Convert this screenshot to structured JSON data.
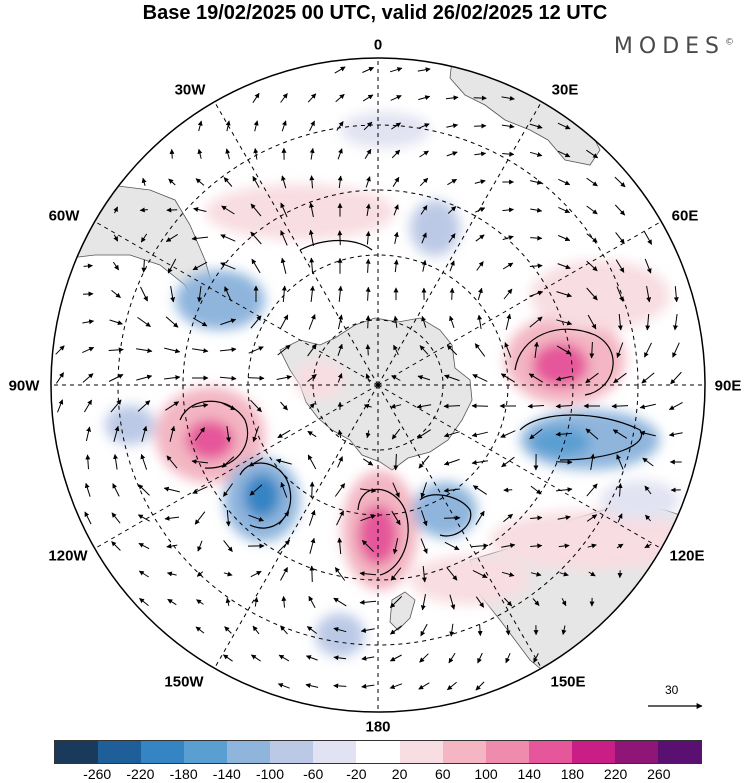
{
  "header": {
    "title": "Base 19/02/2025 00 UTC, valid 26/02/2025 12 UTC",
    "brand": "MODES",
    "brand_mark": "©"
  },
  "map": {
    "projection": "south-polar-stereographic",
    "longitude_labels": [
      "0",
      "30E",
      "60E",
      "90E",
      "120E",
      "150E",
      "180",
      "150W",
      "120W",
      "90W",
      "60W",
      "30W"
    ],
    "reference_vector_label": "30"
  },
  "colorbar": {
    "colors": [
      "#1a3a5c",
      "#1f5f99",
      "#3584c4",
      "#5a9fd2",
      "#8fb5dd",
      "#bcc9e6",
      "#e2e3f2",
      "#ffffff",
      "#f8dde2",
      "#f3b6c2",
      "#ef8cae",
      "#e5569a",
      "#c81e86",
      "#8f1577",
      "#5a1070"
    ],
    "tick_labels": [
      "-260",
      "-220",
      "-180",
      "-140",
      "-100",
      "-60",
      "-20",
      "20",
      "60",
      "100",
      "140",
      "180",
      "220",
      "260"
    ]
  }
}
